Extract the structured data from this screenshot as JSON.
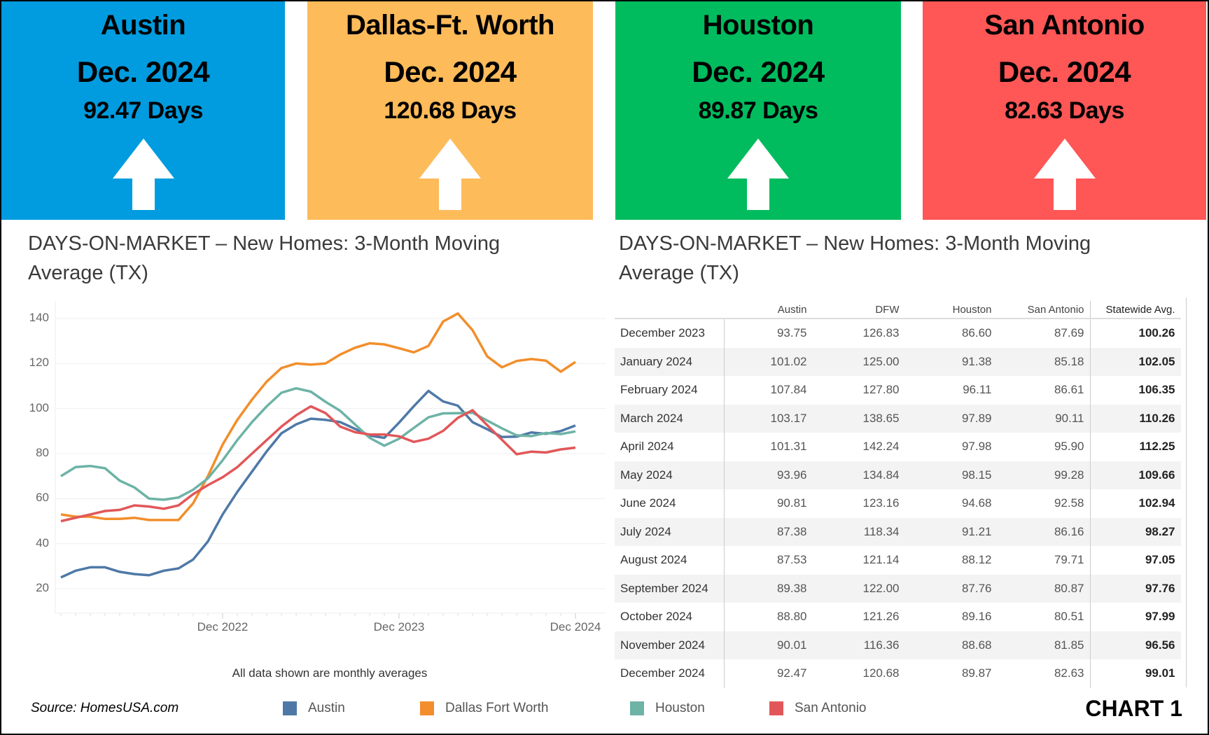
{
  "cards": [
    {
      "city": "Austin",
      "date": "Dec. 2024",
      "days": "92.47 Days",
      "color": "#009CDF",
      "trend": "up"
    },
    {
      "city": "Dallas-Ft. Worth",
      "date": "Dec. 2024",
      "days": "120.68 Days",
      "color": "#FDBB5A",
      "trend": "up"
    },
    {
      "city": "Houston",
      "date": "Dec. 2024",
      "days": "89.87 Days",
      "color": "#00BC5E",
      "trend": "up"
    },
    {
      "city": "San Antonio",
      "date": "Dec. 2024",
      "days": "82.63 Days",
      "color": "#FF5656",
      "trend": "up"
    }
  ],
  "left_title": "DAYS-ON-MARKET – New Homes: 3-Month Moving Average (TX)",
  "right_title": "DAYS-ON-MARKET – New Homes:  3-Month Moving Average (TX)",
  "chart_data": {
    "type": "line",
    "x_start": "Jan 2022",
    "x_end": "Dec 2024",
    "xticks": [
      "Dec 2022",
      "Dec 2023",
      "Dec 2024"
    ],
    "yticks": [
      "20",
      "40",
      "60",
      "80",
      "100",
      "120",
      "140"
    ],
    "ylim": [
      10,
      147
    ],
    "grid": true,
    "note": "All data shown are monthly averages",
    "series": [
      {
        "name": "Austin",
        "color": "#4E79A7",
        "values": [
          25,
          28,
          29.5,
          29.5,
          27.5,
          26.5,
          26,
          28,
          29,
          33,
          41,
          53,
          63,
          72,
          81,
          89,
          93,
          95.5,
          95,
          94,
          91,
          88,
          87,
          93.75,
          101.02,
          107.84,
          103.17,
          101.31,
          93.96,
          90.81,
          87.38,
          87.53,
          89.38,
          88.8,
          90.01,
          92.47
        ]
      },
      {
        "name": "Dallas Fort Worth",
        "color": "#F28E2B",
        "values": [
          53,
          52,
          52,
          51,
          51,
          51.5,
          50.5,
          50.5,
          50.5,
          58,
          70,
          84,
          95,
          104,
          112,
          118,
          120,
          119.5,
          120,
          124,
          127,
          129,
          128.5,
          126.83,
          125.0,
          127.8,
          138.65,
          142.24,
          134.84,
          123.16,
          118.34,
          121.14,
          122.0,
          121.26,
          116.36,
          120.68
        ]
      },
      {
        "name": "Houston",
        "color": "#6DB3A6",
        "values": [
          70,
          74,
          74.5,
          73.5,
          68,
          65,
          60,
          59.5,
          60.5,
          64,
          69,
          77,
          86,
          94,
          101,
          107,
          109,
          107.5,
          103,
          99,
          93,
          87,
          83.5,
          86.6,
          91.38,
          96.11,
          97.89,
          97.98,
          98.15,
          94.68,
          91.21,
          88.12,
          87.76,
          89.16,
          88.68,
          89.87
        ]
      },
      {
        "name": "San Antonio",
        "color": "#E15759",
        "values": [
          50,
          51.5,
          53,
          54.5,
          55,
          57,
          56.5,
          55.5,
          57,
          62,
          66,
          69.5,
          74,
          80,
          86,
          92,
          97,
          101,
          98,
          92,
          89.5,
          88.5,
          88.5,
          87.69,
          85.18,
          86.61,
          90.11,
          95.9,
          99.28,
          92.58,
          86.16,
          79.71,
          80.87,
          80.51,
          81.85,
          82.63
        ]
      }
    ]
  },
  "table": {
    "headers": [
      "",
      "Austin",
      "DFW",
      "Houston",
      "San Antonio",
      "Statewide Avg."
    ],
    "rows": [
      [
        "December 2023",
        "93.75",
        "126.83",
        "86.60",
        "87.69",
        "100.26"
      ],
      [
        "January 2024",
        "101.02",
        "125.00",
        "91.38",
        "85.18",
        "102.05"
      ],
      [
        "February 2024",
        "107.84",
        "127.80",
        "96.11",
        "86.61",
        "106.35"
      ],
      [
        "March 2024",
        "103.17",
        "138.65",
        "97.89",
        "90.11",
        "110.26"
      ],
      [
        "April 2024",
        "101.31",
        "142.24",
        "97.98",
        "95.90",
        "112.25"
      ],
      [
        "May 2024",
        "93.96",
        "134.84",
        "98.15",
        "99.28",
        "109.66"
      ],
      [
        "June 2024",
        "90.81",
        "123.16",
        "94.68",
        "92.58",
        "102.94"
      ],
      [
        "July 2024",
        "87.38",
        "118.34",
        "91.21",
        "86.16",
        "98.27"
      ],
      [
        "August 2024",
        "87.53",
        "121.14",
        "88.12",
        "79.71",
        "97.05"
      ],
      [
        "September 2024",
        "89.38",
        "122.00",
        "87.76",
        "80.87",
        "97.76"
      ],
      [
        "October 2024",
        "88.80",
        "121.26",
        "89.16",
        "80.51",
        "97.99"
      ],
      [
        "November 2024",
        "90.01",
        "116.36",
        "88.68",
        "81.85",
        "96.56"
      ],
      [
        "December 2024",
        "92.47",
        "120.68",
        "89.87",
        "82.63",
        "99.01"
      ]
    ]
  },
  "footer": {
    "source": "Source: HomesUSA.com",
    "legend": [
      "Austin",
      "Dallas Fort Worth",
      "Houston",
      "San Antonio"
    ],
    "chart_label": "CHART 1"
  }
}
